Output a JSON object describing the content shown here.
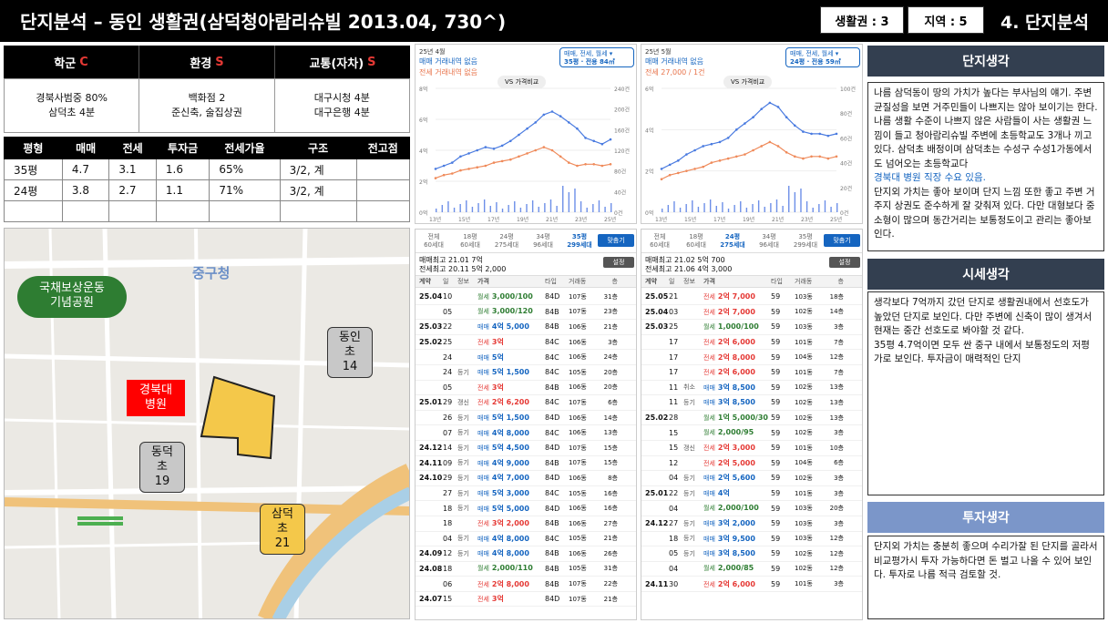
{
  "header": {
    "title": "단지분석 – 동인 생활권(삼덕청아람리슈빌 2013.04, 730^)",
    "box1": "생활권 : 3",
    "box2": "지역 : 5",
    "section": "4. 단지분석"
  },
  "summary": {
    "cols": [
      {
        "label": "학군",
        "grade": "C",
        "lines": [
          "경북사범중 80%",
          "삼덕초 4분"
        ]
      },
      {
        "label": "환경",
        "grade": "S",
        "lines": [
          "백화점 2",
          "준신축, 술집상권"
        ]
      },
      {
        "label": "교통(자차)",
        "grade": "S",
        "lines": [
          "대구시청 4분",
          "대구은행 4분"
        ]
      }
    ]
  },
  "spec": {
    "headers": [
      "평형",
      "매매",
      "전세",
      "투자금",
      "전세가율",
      "구조",
      "전고점"
    ],
    "rows": [
      [
        "35평",
        "4.7",
        "3.1",
        "1.6",
        "65%",
        "3/2, 계",
        ""
      ],
      [
        "24평",
        "3.8",
        "2.7",
        "1.1",
        "71%",
        "3/2, 계",
        ""
      ],
      [
        "",
        "",
        "",
        "",
        "",
        "",
        ""
      ]
    ]
  },
  "map": {
    "labels": {
      "park": "국채보상운동\n기념공원",
      "cityhall": "중구청",
      "dongin": "동인초\n14",
      "hospital": "경북대\n병원",
      "dongdeok": "동덕초\n19",
      "samdeok": "삼덕초\n21"
    },
    "colors": {
      "school": "#c8c8c8",
      "hospital": "#ff0000",
      "target": "#f4c84a",
      "park": "#2e7d32"
    }
  },
  "charts": [
    {
      "h1": "25년 4월",
      "h2": "매매 거래내역 없음",
      "h3": "전세 거래내역 없음",
      "sel1": "매매, 전세, 월세",
      "sel2": "35평 · 전용 84㎡",
      "vs": "VS 가격비교",
      "yl": [
        "8억",
        "6억",
        "4억",
        "2억",
        "0억"
      ],
      "yr": [
        "240건",
        "200건",
        "160건",
        "120건",
        "80건",
        "40건",
        "0건"
      ],
      "xt": [
        "13년",
        "15년",
        "17년",
        "19년",
        "21년",
        "23년",
        "25년"
      ],
      "blue": [
        2.8,
        3.0,
        3.2,
        3.6,
        3.8,
        4.0,
        4.2,
        4.1,
        4.3,
        4.6,
        5.0,
        5.4,
        5.8,
        6.3,
        6.5,
        6.2,
        5.8,
        5.4,
        4.8,
        4.6,
        4.4,
        4.7
      ],
      "orange": [
        2.2,
        2.4,
        2.5,
        2.7,
        2.8,
        2.9,
        3.0,
        3.2,
        3.3,
        3.4,
        3.6,
        3.8,
        4.0,
        4.2,
        4.0,
        3.6,
        3.2,
        3.0,
        3.1,
        3.1,
        3.0,
        3.1
      ]
    },
    {
      "h1": "25년 5월",
      "h2": "매매 거래내역 없음",
      "h3": "전세 27,000 / 1건",
      "sel1": "매매, 전세, 월세",
      "sel2": "24평 · 전용 59㎡",
      "vs": "VS 가격비교",
      "yl": [
        "6억",
        "4억",
        "2억",
        "0억"
      ],
      "yr": [
        "100건",
        "80건",
        "60건",
        "40건",
        "20건",
        "0건"
      ],
      "xt": [
        "13년",
        "15년",
        "17년",
        "19년",
        "21년",
        "23년",
        "25년"
      ],
      "blue": [
        2.1,
        2.3,
        2.5,
        2.8,
        3.0,
        3.2,
        3.3,
        3.4,
        3.6,
        4.0,
        4.3,
        4.6,
        5.0,
        5.3,
        5.1,
        4.6,
        4.2,
        3.9,
        3.8,
        3.8,
        3.7,
        3.8
      ],
      "orange": [
        1.6,
        1.8,
        1.9,
        2.0,
        2.1,
        2.2,
        2.4,
        2.5,
        2.6,
        2.7,
        2.8,
        3.0,
        3.2,
        3.4,
        3.2,
        2.9,
        2.7,
        2.6,
        2.7,
        2.7,
        2.6,
        2.7
      ]
    }
  ],
  "tx": [
    {
      "tabs": [
        [
          "전체",
          "60세대"
        ],
        [
          "18평",
          "60세대"
        ],
        [
          "24평",
          "275세대"
        ],
        [
          "34평",
          "96세대"
        ],
        [
          "35평",
          "299세대"
        ]
      ],
      "active": 4,
      "btn": "맞춤기",
      "hi1": "매매최고 21.01  7억",
      "hi2": "전세최고 20.11  5억 2,000",
      "set": "설정",
      "cols": [
        "계약",
        "일",
        "정보",
        "가격",
        "타입",
        "거래동",
        "층"
      ],
      "rows": [
        [
          "25.04",
          "10",
          "",
          "월세",
          "3,000/100",
          "84D",
          "107동",
          "31층"
        ],
        [
          "",
          "05",
          "",
          "월세",
          "3,000/120",
          "84B",
          "107동",
          "23층"
        ],
        [
          "25.03",
          "22",
          "",
          "매매",
          "4억 5,000",
          "84B",
          "106동",
          "21층"
        ],
        [
          "25.02",
          "25",
          "",
          "전세",
          "3억",
          "84C",
          "106동",
          "3층"
        ],
        [
          "",
          "24",
          "",
          "매매",
          "5억",
          "84C",
          "106동",
          "24층"
        ],
        [
          "",
          "24",
          "등기",
          "매매",
          "5억 1,500",
          "84C",
          "105동",
          "20층"
        ],
        [
          "",
          "05",
          "",
          "전세",
          "3억",
          "84B",
          "106동",
          "20층"
        ],
        [
          "25.01",
          "29",
          "갱신",
          "전세",
          "2억 6,200",
          "84C",
          "107동",
          "6층"
        ],
        [
          "",
          "26",
          "등기",
          "매매",
          "5억 1,500",
          "84D",
          "106동",
          "14층"
        ],
        [
          "",
          "07",
          "등기",
          "매매",
          "4억 8,000",
          "84C",
          "106동",
          "13층"
        ],
        [
          "24.12",
          "14",
          "등기",
          "매매",
          "5억 4,500",
          "84D",
          "107동",
          "15층"
        ],
        [
          "24.11",
          "09",
          "등기",
          "매매",
          "4억 9,000",
          "84B",
          "107동",
          "15층"
        ],
        [
          "24.10",
          "29",
          "등기",
          "매매",
          "4억 7,000",
          "84D",
          "106동",
          "8층"
        ],
        [
          "",
          "27",
          "등기",
          "매매",
          "5억 3,000",
          "84C",
          "105동",
          "16층"
        ],
        [
          "",
          "18",
          "등기",
          "매매",
          "5억 5,000",
          "84D",
          "106동",
          "16층"
        ],
        [
          "",
          "18",
          "",
          "전세",
          "3억 2,000",
          "84B",
          "106동",
          "27층"
        ],
        [
          "",
          "04",
          "등기",
          "매매",
          "4억 8,000",
          "84C",
          "105동",
          "21층"
        ],
        [
          "24.09",
          "12",
          "등기",
          "매매",
          "4억 8,000",
          "84B",
          "106동",
          "26층"
        ],
        [
          "24.08",
          "18",
          "",
          "월세",
          "2,000/110",
          "84B",
          "105동",
          "31층"
        ],
        [
          "",
          "06",
          "",
          "전세",
          "2억 8,000",
          "84B",
          "107동",
          "22층"
        ],
        [
          "24.07",
          "15",
          "",
          "전세",
          "3억",
          "84D",
          "107동",
          "21층"
        ]
      ]
    },
    {
      "tabs": [
        [
          "전체",
          "60세대"
        ],
        [
          "18평",
          "60세대"
        ],
        [
          "24평",
          "275세대"
        ],
        [
          "34평",
          "96세대"
        ],
        [
          "35평",
          "299세대"
        ]
      ],
      "active": 2,
      "btn": "맞춤기",
      "hi1": "매매최고 21.02  5억 700",
      "hi2": "전세최고 21.06  4억 3,000",
      "set": "설정",
      "cols": [
        "계약",
        "일",
        "정보",
        "가격",
        "타입",
        "거래동",
        "층"
      ],
      "rows": [
        [
          "25.05",
          "21",
          "",
          "전세",
          "2억 7,000",
          "59",
          "103동",
          "18층"
        ],
        [
          "25.04",
          "03",
          "",
          "전세",
          "2억 7,000",
          "59",
          "102동",
          "14층"
        ],
        [
          "25.03",
          "25",
          "",
          "월세",
          "1,000/100",
          "59",
          "103동",
          "3층"
        ],
        [
          "",
          "17",
          "",
          "전세",
          "2억 6,000",
          "59",
          "101동",
          "7층"
        ],
        [
          "",
          "17",
          "",
          "전세",
          "2억 8,000",
          "59",
          "104동",
          "12층"
        ],
        [
          "",
          "17",
          "",
          "전세",
          "2억 6,000",
          "59",
          "101동",
          "7층"
        ],
        [
          "",
          "11",
          "취소",
          "매매",
          "3억 8,500",
          "59",
          "102동",
          "13층"
        ],
        [
          "",
          "11",
          "등기",
          "매매",
          "3억 8,500",
          "59",
          "102동",
          "13층"
        ],
        [
          "25.02",
          "28",
          "",
          "월세",
          "1억 5,000/30",
          "59",
          "102동",
          "13층"
        ],
        [
          "",
          "15",
          "",
          "월세",
          "2,000/95",
          "59",
          "102동",
          "3층"
        ],
        [
          "",
          "15",
          "갱신",
          "전세",
          "2억 3,000",
          "59",
          "101동",
          "10층"
        ],
        [
          "",
          "12",
          "",
          "전세",
          "2억 5,000",
          "59",
          "104동",
          "6층"
        ],
        [
          "",
          "04",
          "등기",
          "매매",
          "2억 5,600",
          "59",
          "102동",
          "3층"
        ],
        [
          "25.01",
          "22",
          "등기",
          "매매",
          "4억",
          "59",
          "101동",
          "3층"
        ],
        [
          "",
          "04",
          "",
          "월세",
          "2,000/100",
          "59",
          "103동",
          "20층"
        ],
        [
          "24.12",
          "27",
          "등기",
          "매매",
          "3억 2,000",
          "59",
          "103동",
          "3층"
        ],
        [
          "",
          "18",
          "등기",
          "매매",
          "3억 9,500",
          "59",
          "103동",
          "12층"
        ],
        [
          "",
          "05",
          "등기",
          "매매",
          "3억 8,500",
          "59",
          "102동",
          "12층"
        ],
        [
          "",
          "04",
          "",
          "월세",
          "2,000/85",
          "59",
          "102동",
          "12층"
        ],
        [
          "24.11",
          "30",
          "",
          "전세",
          "2억 6,000",
          "59",
          "101동",
          "3층"
        ]
      ]
    }
  ],
  "right": [
    {
      "title": "단지생각",
      "color": "#333f50",
      "paras": [
        {
          "text": "나름 삼덕동이 땅의 가치가 높다는 부사님의 얘기. 주변 균질성을 보면 거주민들이 나쁘지는 않아 보이기는 한다. 나름 생활 수준이 나쁘지 않은 사람들이 사는 생활권 느낌이 들고 청아람리슈빌 주변에 초등학교도 3개나 끼고 있다. 삼덕초 배정이며 삼덕초는 수성구 수성1가동에서도 넘어오는 초등학교다",
          "blue": false
        },
        {
          "text": "경북대 병원 직장 수요 있음.",
          "blue": true
        },
        {
          "text": "단지외 가치는 좋아 보이며 단지 느낌 또한 좋고 주변 거주지 상권도 준수하게 잘 갖춰져 있다. 다만 대형보다 중소형이 많으며 동간거리는 보통정도이고 관리는 좋아보인다.",
          "blue": false
        }
      ]
    },
    {
      "title": "시세생각",
      "color": "#333f50",
      "paras": [
        {
          "text": "생각보다 7억까지 갔던 단지로 생활권내에서 선호도가 높았던 단지로 보인다. 다만 주변에 신축이 많이 생겨서 현재는 중간 선호도로 봐야할 것 같다.",
          "blue": false
        },
        {
          "text": "35평 4.7억이면 모두 싼 중구 내에서 보통정도의 저평가로 보인다. 투자금이 매력적인 단지",
          "blue": false
        }
      ]
    },
    {
      "title": "투자생각",
      "color": "#7b96c9",
      "paras": [
        {
          "text": "단지외 가치는 충분히 좋으며 수리가잘 된 단지를 골라서 비교평가시 투자 가능하다면 돈 벌고 나올 수 있어 보인다. 투자로 나름 적극 검토할 것.",
          "blue": false
        }
      ]
    }
  ]
}
